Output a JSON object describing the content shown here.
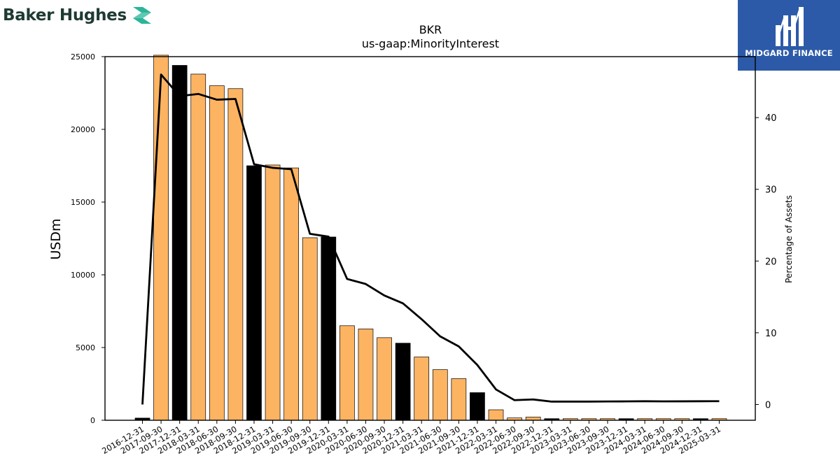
{
  "header": {
    "company_name": "Baker Hughes",
    "partner_name": "MIDGARD FINANCE"
  },
  "colors": {
    "bar_primary": "#fdb462",
    "bar_highlight": "#000000",
    "line": "#000000",
    "brand_text": "#1e3a33",
    "brand_accent": "#2bb59a",
    "partner_bg": "#2c5aa8"
  },
  "chart_data": {
    "type": "bar",
    "title": "BKR",
    "subtitle": "us-gaap:MinorityInterest",
    "ylabel": "USDm",
    "y2label": "Percentage of Assets",
    "ylim": [
      0,
      25000
    ],
    "y2lim": [
      -2.2,
      48.5
    ],
    "yticks": [
      0,
      5000,
      10000,
      15000,
      20000,
      25000
    ],
    "y2ticks": [
      0,
      10,
      20,
      30,
      40
    ],
    "grid": false,
    "categories": [
      "2016-12-31",
      "2017-09-30",
      "2017-12-31",
      "2018-03-31",
      "2018-06-30",
      "2018-09-30",
      "2018-12-31",
      "2019-03-31",
      "2019-06-30",
      "2019-09-30",
      "2019-12-31",
      "2020-03-31",
      "2020-06-30",
      "2020-09-30",
      "2020-12-31",
      "2021-03-31",
      "2021-06-30",
      "2021-09-30",
      "2021-12-31",
      "2022-03-31",
      "2022-06-30",
      "2022-09-30",
      "2022-12-31",
      "2023-03-31",
      "2023-06-30",
      "2023-09-30",
      "2023-12-31",
      "2024-03-31",
      "2024-06-30",
      "2024-09-30",
      "2024-12-31",
      "2025-03-31"
    ],
    "series": [
      {
        "values": [
          150,
          25100,
          24400,
          23800,
          23000,
          22800,
          17500,
          17550,
          17350,
          12550,
          12600,
          6500,
          6280,
          5680,
          5300,
          4350,
          3480,
          2860,
          1900,
          720,
          160,
          220,
          110,
          110,
          110,
          110,
          110,
          110,
          110,
          110,
          110,
          110
        ],
        "highlight": [
          true,
          false,
          true,
          false,
          false,
          false,
          true,
          false,
          false,
          false,
          true,
          false,
          false,
          false,
          true,
          false,
          false,
          false,
          true,
          false,
          false,
          false,
          true,
          false,
          false,
          false,
          true,
          false,
          false,
          false,
          true,
          false
        ]
      },
      {
        "axis": "right",
        "style": "line",
        "values": [
          0,
          46,
          43,
          43.3,
          42.5,
          42.6,
          33.5,
          33,
          32.8,
          23.8,
          23.4,
          17.5,
          16.8,
          15.2,
          14.1,
          11.9,
          9.5,
          8.1,
          5.5,
          2.1,
          0.6,
          0.7,
          0.4,
          0.4,
          0.4,
          0.42,
          0.43,
          0.45,
          0.43,
          0.44,
          0.45,
          0.46
        ]
      }
    ]
  }
}
